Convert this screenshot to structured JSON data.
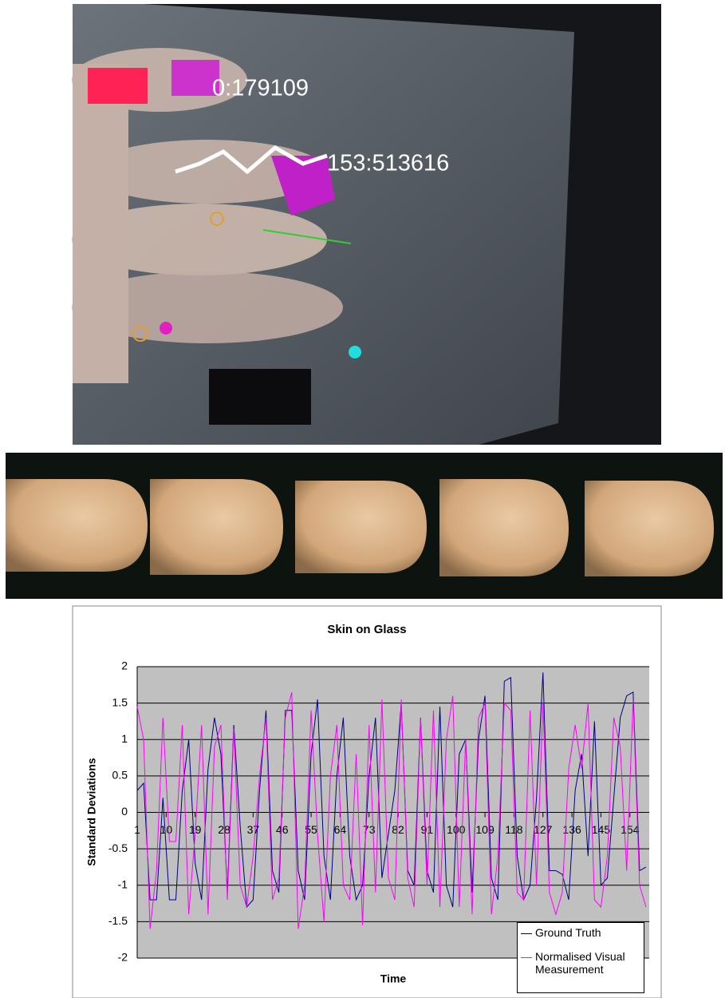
{
  "photo": {
    "labels": [
      "0:179109",
      "153:513616"
    ]
  },
  "chart_data": {
    "type": "line",
    "title": "Skin on Glass",
    "x_label": "Time",
    "y_label": "Standard Deviations",
    "x": [
      1,
      3,
      5,
      7,
      9,
      11,
      13,
      15,
      17,
      19,
      21,
      23,
      25,
      27,
      29,
      31,
      33,
      35,
      37,
      39,
      41,
      43,
      45,
      47,
      49,
      51,
      53,
      55,
      57,
      59,
      61,
      63,
      65,
      67,
      69,
      71,
      73,
      75,
      77,
      79,
      81,
      83,
      85,
      87,
      89,
      91,
      93,
      95,
      97,
      99,
      101,
      103,
      105,
      107,
      109,
      111,
      113,
      115,
      117,
      119,
      121,
      123,
      125,
      127,
      129,
      131,
      133,
      135,
      137,
      139,
      141,
      143,
      145,
      147,
      149,
      151,
      153,
      155,
      157,
      159
    ],
    "series": [
      {
        "name": "Ground Truth",
        "color": "#000080",
        "values": [
          0.3,
          0.4,
          -1.2,
          -1.2,
          0.2,
          -1.2,
          -1.2,
          0.3,
          1.0,
          -0.7,
          -1.2,
          0.6,
          1.3,
          0.8,
          -1.1,
          1.2,
          -0.2,
          -1.3,
          -1.2,
          0.3,
          1.4,
          -0.8,
          -1.1,
          1.4,
          1.4,
          -0.8,
          -1.2,
          0.8,
          1.55,
          -0.6,
          -1.2,
          0.5,
          1.3,
          -0.6,
          -1.2,
          -1.0,
          0.5,
          1.3,
          -0.9,
          -0.3,
          0.3,
          1.5,
          -0.8,
          -1.0,
          1.3,
          -0.8,
          -1.1,
          1.45,
          -1.0,
          -1.3,
          0.8,
          1.0,
          -1.1,
          1.0,
          1.6,
          -0.9,
          -1.2,
          1.8,
          1.85,
          -0.6,
          -1.2,
          -1.0,
          0.2,
          1.92,
          -0.8,
          -0.8,
          -0.85,
          -1.2,
          0.3,
          0.8,
          -0.6,
          1.25,
          -1.0,
          -0.9,
          0.2,
          1.3,
          1.6,
          1.65,
          -0.8,
          -0.75
        ]
      },
      {
        "name": "Normalised Visual Measurement",
        "color": "#ff00ff",
        "values": [
          1.45,
          1.0,
          -1.6,
          -0.8,
          1.3,
          -0.4,
          -0.4,
          1.2,
          -1.4,
          -0.3,
          1.2,
          -1.4,
          0.9,
          1.2,
          -1.2,
          1.15,
          -1.0,
          -1.3,
          -0.6,
          0.5,
          1.3,
          -1.2,
          -0.9,
          1.3,
          1.65,
          -1.6,
          -1.0,
          1.4,
          -0.3,
          -1.5,
          0.5,
          1.2,
          -1.0,
          -1.2,
          0.8,
          -1.55,
          1.2,
          -1.1,
          1.55,
          -0.9,
          -1.2,
          1.55,
          -0.9,
          -1.3,
          1.3,
          -1.0,
          1.4,
          -1.3,
          1.0,
          1.6,
          -1.3,
          1.0,
          -1.4,
          1.3,
          1.5,
          -1.4,
          -0.6,
          1.5,
          1.4,
          -1.1,
          -1.2,
          1.4,
          -1.0,
          1.5,
          -1.1,
          -1.4,
          -1.1,
          0.6,
          1.2,
          0.6,
          1.5,
          -1.2,
          -1.3,
          -0.6,
          1.3,
          0.9,
          -0.8,
          1.55,
          -1.0,
          -1.3
        ]
      }
    ],
    "xlim": [
      1,
      160
    ],
    "xticks": [
      1,
      10,
      19,
      28,
      37,
      46,
      55,
      64,
      73,
      82,
      91,
      100,
      109,
      118,
      127,
      136,
      145,
      154
    ],
    "ylim": [
      -2,
      2
    ],
    "yticks": [
      2,
      1.5,
      1,
      0.5,
      0,
      -0.5,
      -1,
      -1.5,
      -2
    ],
    "grid": true,
    "legend": "lower right"
  }
}
